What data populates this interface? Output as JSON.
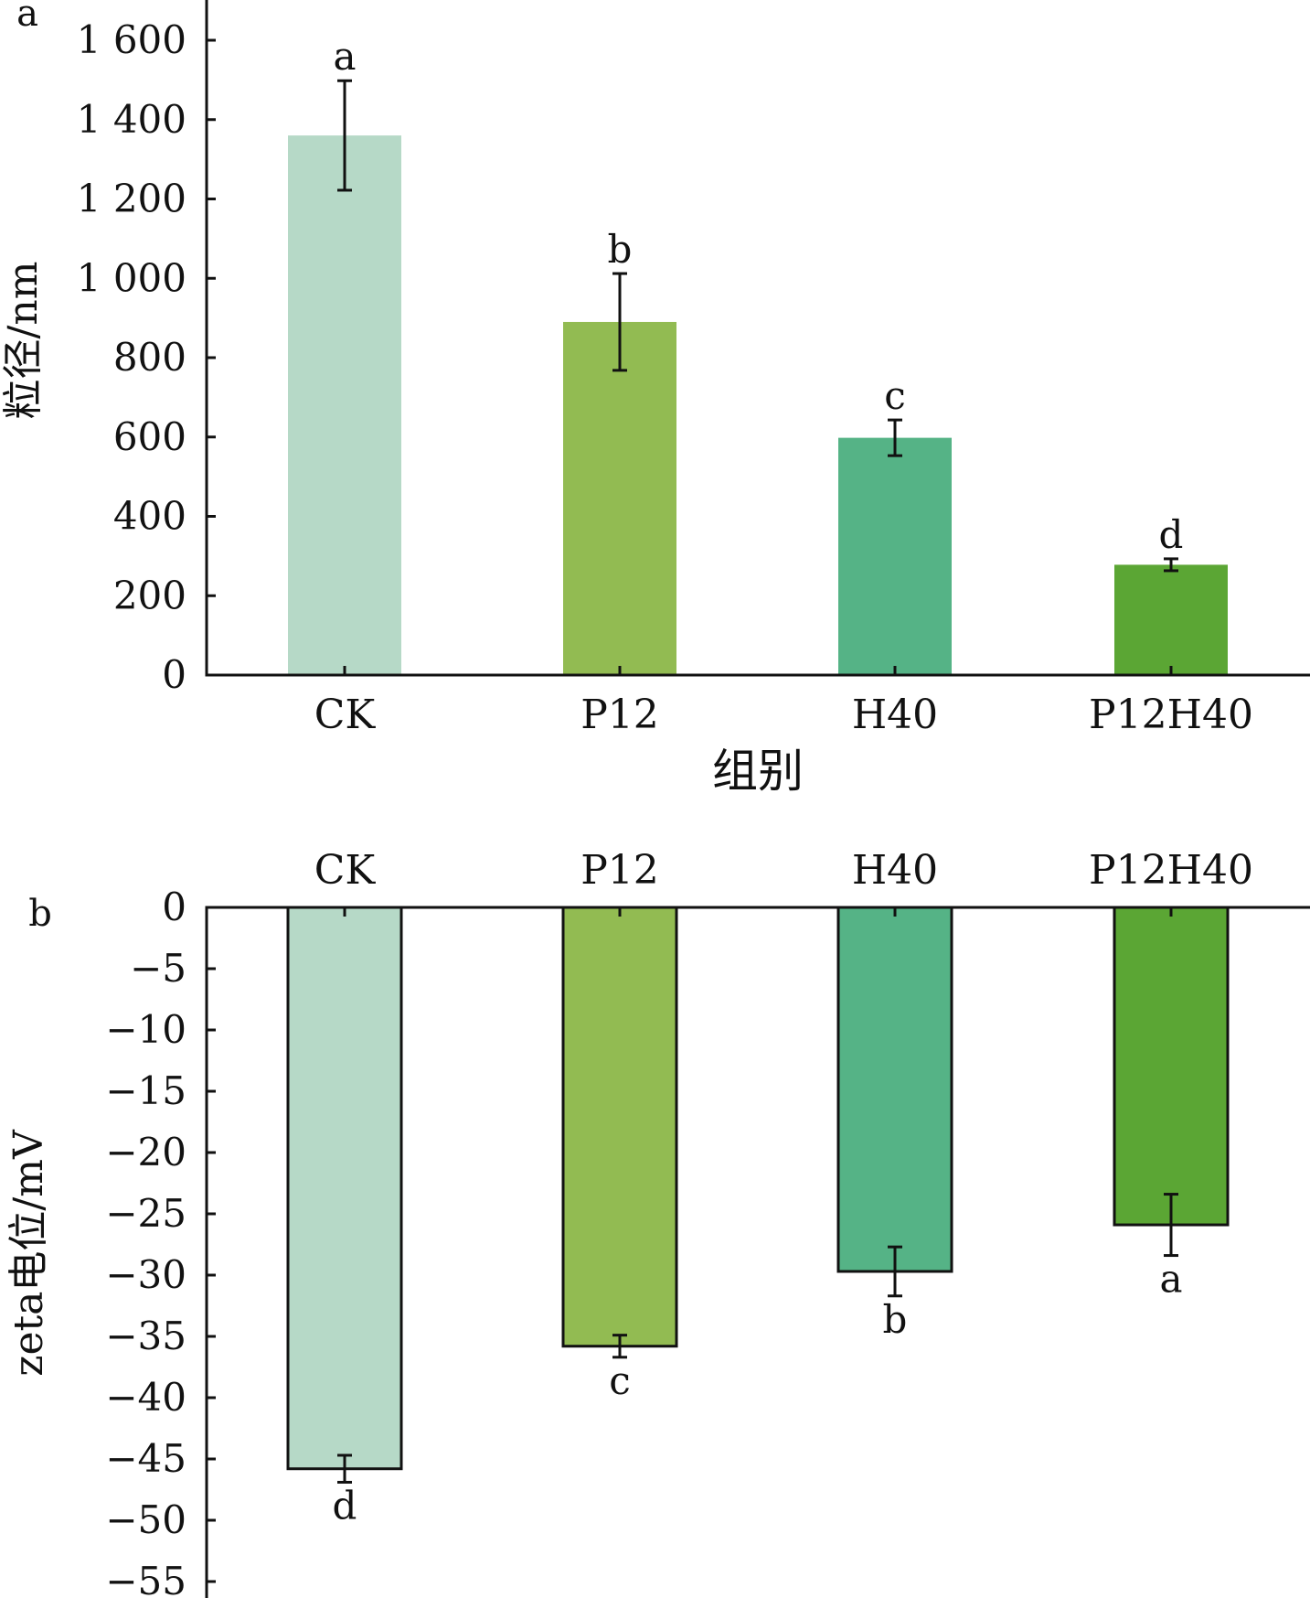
{
  "chart_data": [
    {
      "panel_label": "a",
      "type": "bar",
      "categories": [
        "CK",
        "P12",
        "H40",
        "P12H40"
      ],
      "values": [
        1360,
        890,
        598,
        278
      ],
      "errors": [
        138,
        122,
        45,
        15
      ],
      "significance": [
        "a",
        "b",
        "c",
        "d"
      ],
      "colors": [
        "#b6d9c7",
        "#92bb52",
        "#55b386",
        "#5ba634"
      ],
      "xlabel": "组别",
      "ylabel": "粒径/nm",
      "ylim": [
        0,
        1700
      ],
      "yticks": [
        0,
        200,
        400,
        600,
        800,
        1000,
        1200,
        1400,
        1600
      ],
      "ytick_labels": [
        "0",
        "200",
        "400",
        "600",
        "800",
        "1 000",
        "1 200",
        "1 400",
        "1 600"
      ],
      "bar_outline": false,
      "category_axis_position": "bottom"
    },
    {
      "panel_label": "b",
      "type": "bar",
      "categories": [
        "CK",
        "P12",
        "H40",
        "P12H40"
      ],
      "values": [
        -45.8,
        -35.8,
        -29.7,
        -25.9
      ],
      "errors": [
        1.1,
        0.9,
        2.0,
        2.5
      ],
      "significance": [
        "d",
        "c",
        "b",
        "a"
      ],
      "colors": [
        "#b6d9c7",
        "#92bb52",
        "#55b386",
        "#5ba634"
      ],
      "xlabel": "",
      "ylabel": "zeta电位/mV",
      "ylim": [
        -57,
        0
      ],
      "yticks": [
        0,
        -5,
        -10,
        -15,
        -20,
        -25,
        -30,
        -35,
        -40,
        -45,
        -50,
        -55
      ],
      "ytick_labels": [
        "0",
        "−5",
        "−10",
        "−15",
        "−20",
        "−25",
        "−30",
        "−35",
        "−40",
        "−45",
        "−50",
        "−55"
      ],
      "bar_outline": true,
      "category_axis_position": "top"
    }
  ]
}
